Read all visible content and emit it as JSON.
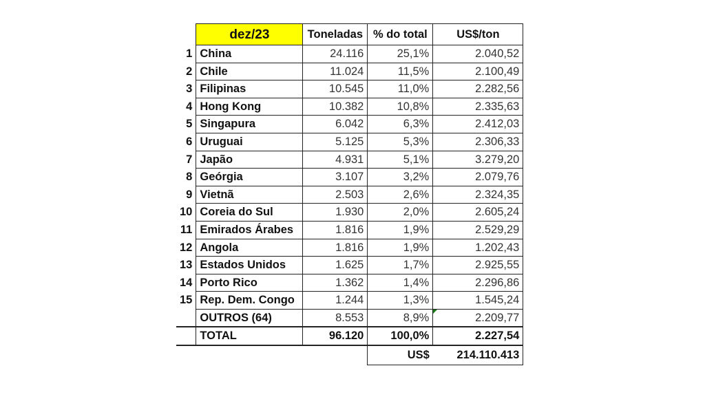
{
  "table": {
    "title": "dez/23",
    "title_bg": "#ffff00",
    "columns": [
      "Toneladas",
      "% do total",
      "US$/ton"
    ],
    "rows": [
      {
        "rank": "1",
        "country": "China",
        "toneladas": "24.116",
        "pct": "25,1%",
        "usd_ton": "2.040,52"
      },
      {
        "rank": "2",
        "country": "Chile",
        "toneladas": "11.024",
        "pct": "11,5%",
        "usd_ton": "2.100,49"
      },
      {
        "rank": "3",
        "country": "Filipinas",
        "toneladas": "10.545",
        "pct": "11,0%",
        "usd_ton": "2.282,56"
      },
      {
        "rank": "4",
        "country": "Hong Kong",
        "toneladas": "10.382",
        "pct": "10,8%",
        "usd_ton": "2.335,63"
      },
      {
        "rank": "5",
        "country": "Singapura",
        "toneladas": "6.042",
        "pct": "6,3%",
        "usd_ton": "2.412,03"
      },
      {
        "rank": "6",
        "country": "Uruguai",
        "toneladas": "5.125",
        "pct": "5,3%",
        "usd_ton": "2.306,33"
      },
      {
        "rank": "7",
        "country": "Japão",
        "toneladas": "4.931",
        "pct": "5,1%",
        "usd_ton": "3.279,20"
      },
      {
        "rank": "8",
        "country": "Geórgia",
        "toneladas": "3.107",
        "pct": "3,2%",
        "usd_ton": "2.079,76"
      },
      {
        "rank": "9",
        "country": "Vietnã",
        "toneladas": "2.503",
        "pct": "2,6%",
        "usd_ton": "2.324,35"
      },
      {
        "rank": "10",
        "country": "Coreia do Sul",
        "toneladas": "1.930",
        "pct": "2,0%",
        "usd_ton": "2.605,24"
      },
      {
        "rank": "11",
        "country": "Emirados Árabes",
        "toneladas": "1.816",
        "pct": "1,9%",
        "usd_ton": "2.529,29"
      },
      {
        "rank": "12",
        "country": "Angola",
        "toneladas": "1.816",
        "pct": "1,9%",
        "usd_ton": "1.202,43"
      },
      {
        "rank": "13",
        "country": "Estados Unidos",
        "toneladas": "1.625",
        "pct": "1,7%",
        "usd_ton": "2.925,55"
      },
      {
        "rank": "14",
        "country": "Porto Rico",
        "toneladas": "1.362",
        "pct": "1,4%",
        "usd_ton": "2.296,86"
      },
      {
        "rank": "15",
        "country": "Rep. Dem. Congo",
        "toneladas": "1.244",
        "pct": "1,3%",
        "usd_ton": "1.545,24"
      }
    ],
    "others": {
      "label": "OUTROS (64)",
      "toneladas": "8.553",
      "pct": "8,9%",
      "usd_ton": "2.209,77"
    },
    "total": {
      "label": "TOTAL",
      "toneladas": "96.120",
      "pct": "100,0%",
      "usd_ton": "2.227,54"
    },
    "grand": {
      "label": "US$",
      "value": "214.110.413"
    }
  }
}
